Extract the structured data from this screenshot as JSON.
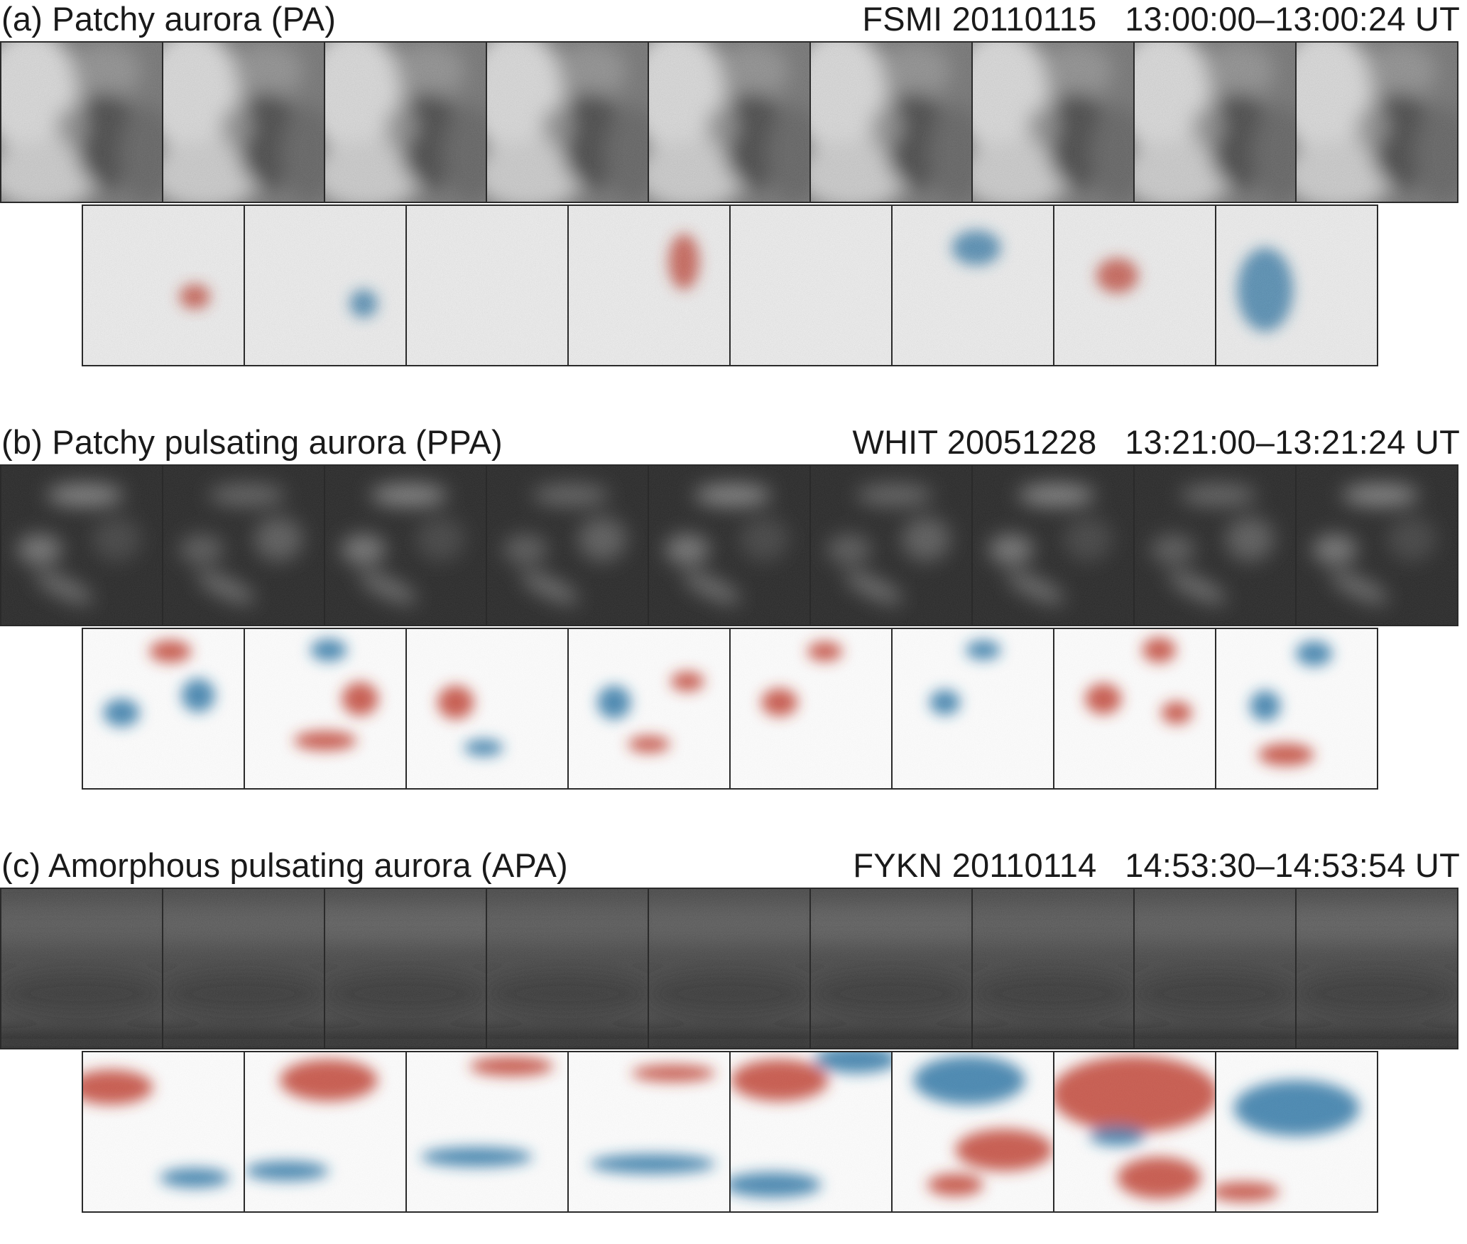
{
  "panels": [
    {
      "title": "(a) Patchy aurora (PA)",
      "station": "FSMI 20110115",
      "time_start": "13:00:00",
      "time_end": "13:00:24 UT",
      "raw_style": "bright",
      "raw_frames": 9,
      "diff_frames": 8,
      "diff_colors": {
        "positive": "#c0392b",
        "negative": "#2471a3",
        "zero": "#f4f4f4"
      }
    },
    {
      "title": "(b) Patchy pulsating aurora (PPA)",
      "station": "WHIT 20051228",
      "time_start": "13:21:00",
      "time_end": "13:21:24 UT",
      "raw_style": "dark-patches",
      "raw_frames": 9,
      "diff_frames": 8,
      "diff_colors": {
        "positive": "#c0392b",
        "negative": "#2471a3",
        "zero": "#ffffff"
      }
    },
    {
      "title": "(c) Amorphous pulsating aurora (APA)",
      "station": "FYKN 20110114",
      "time_start": "14:53:30",
      "time_end": "14:53:54 UT",
      "raw_style": "hazy",
      "raw_frames": 9,
      "diff_frames": 8,
      "diff_colors": {
        "positive": "#c0392b",
        "negative": "#2471a3",
        "zero": "#ffffff"
      }
    }
  ]
}
